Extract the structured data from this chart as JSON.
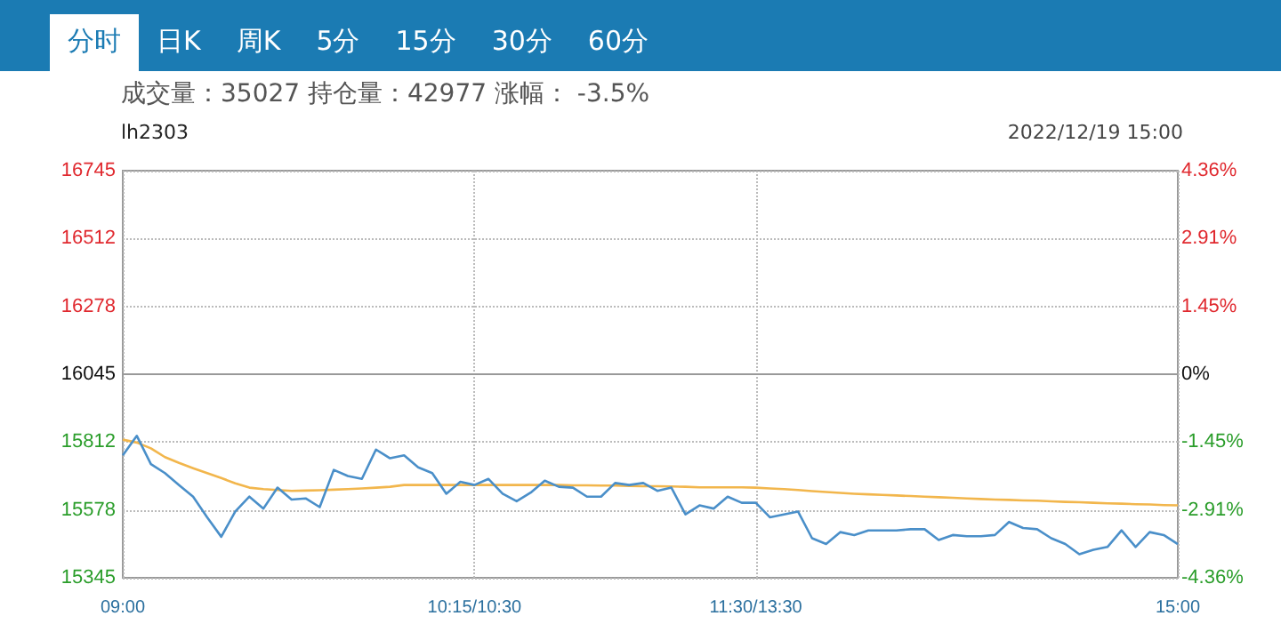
{
  "chart_data": {
    "type": "line",
    "title": "lh2303",
    "subtitle": "成交量：35027  持仓量：42977  涨幅：  -3.5%",
    "annotations": [
      "分时",
      "日K",
      "周K",
      "5分",
      "15分",
      "30分",
      "60分",
      "2022/12/19 15:00"
    ],
    "categories": [
      "09:00",
      null,
      null,
      null,
      null,
      null,
      null,
      null,
      null,
      null,
      null,
      null,
      null,
      null,
      null,
      null,
      null,
      null,
      null,
      null,
      null,
      null,
      null,
      null,
      null,
      "10:15/10:30",
      null,
      null,
      null,
      null,
      null,
      null,
      null,
      null,
      null,
      null,
      null,
      null,
      null,
      null,
      null,
      null,
      null,
      null,
      null,
      "11:30/13:30",
      null,
      null,
      null,
      null,
      null,
      null,
      null,
      null,
      null,
      null,
      null,
      null,
      null,
      null,
      null,
      null,
      null,
      null,
      null,
      null,
      null,
      null,
      null,
      null,
      null,
      null,
      null,
      null,
      null,
      "15:00"
    ],
    "series": [
      {
        "color": "#4a8fc9",
        "values": [
          15766,
          15833,
          15736,
          15705,
          15664,
          15624,
          15553,
          15486,
          15573,
          15624,
          15583,
          15655,
          15614,
          15618,
          15588,
          15716,
          15695,
          15685,
          15786,
          15756,
          15766,
          15725,
          15705,
          15634,
          15675,
          15664,
          15685,
          15634,
          15608,
          15638,
          15679,
          15658,
          15655,
          15624,
          15624,
          15671,
          15664,
          15671,
          15644,
          15655,
          15563,
          15594,
          15583,
          15624,
          15603,
          15603,
          15553,
          15563,
          15573,
          15481,
          15461,
          15502,
          15492,
          15508,
          15508,
          15508,
          15512,
          15512,
          15475,
          15492,
          15488,
          15488,
          15492,
          15537,
          15516,
          15512,
          15481,
          15461,
          15426,
          15441,
          15451,
          15508,
          15451,
          15502,
          15492,
          15461
        ]
      },
      {
        "color": "#f2b64c",
        "values": [
          15820,
          15810,
          15790,
          15760,
          15740,
          15722,
          15705,
          15688,
          15670,
          15655,
          15650,
          15647,
          15644,
          15645,
          15646,
          15648,
          15650,
          15652,
          15655,
          15658,
          15664,
          15664,
          15664,
          15664,
          15664,
          15664,
          15664,
          15664,
          15664,
          15664,
          15664,
          15664,
          15663,
          15663,
          15662,
          15662,
          15661,
          15660,
          15660,
          15659,
          15658,
          15656,
          15656,
          15656,
          15656,
          15655,
          15652,
          15650,
          15647,
          15643,
          15640,
          15637,
          15634,
          15632,
          15630,
          15628,
          15626,
          15624,
          15622,
          15620,
          15618,
          15616,
          15614,
          15613,
          15611,
          15610,
          15608,
          15606,
          15605,
          15603,
          15601,
          15600,
          15598,
          15597,
          15595,
          15594
        ]
      }
    ],
    "ylim": [
      15345,
      16745
    ],
    "yticks": [
      15345,
      15578,
      15812,
      16045,
      16278,
      16512,
      16745
    ],
    "y2lim": [
      -4.36,
      4.36
    ],
    "y2ticks": [
      {
        "value": -4.36,
        "label": "-4.36%"
      },
      {
        "value": -2.91,
        "label": "-2.91%"
      },
      {
        "value": -1.45,
        "label": "-1.45%"
      },
      {
        "value": 0,
        "label": "0%"
      },
      {
        "value": 1.45,
        "label": "1.45%"
      },
      {
        "value": 2.91,
        "label": "2.91%"
      },
      {
        "value": 4.36,
        "label": "4.36%"
      }
    ],
    "ref_lines": [
      {
        "axis": "y",
        "value": 16045,
        "color": "#999999",
        "line_style": "solid"
      }
    ],
    "grid": true
  }
}
